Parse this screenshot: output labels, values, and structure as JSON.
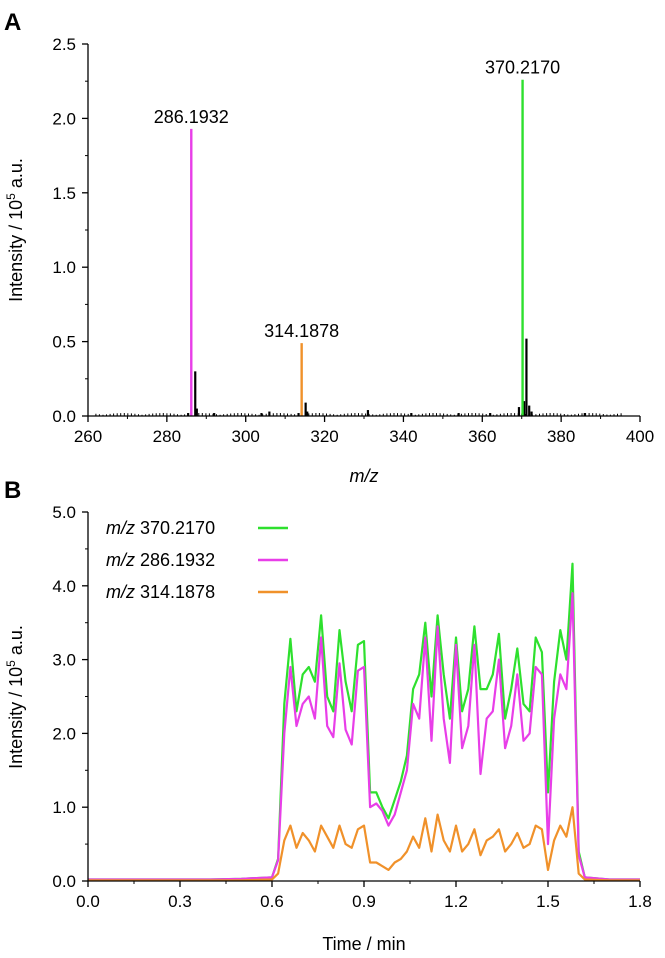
{
  "chart_data": [
    {
      "panel_label": "A",
      "type": "bar",
      "xlabel_italic": "m/z",
      "ylabel_prefix": "Intensity / 10",
      "ylabel_exp": "5",
      "ylabel_suffix": " a.u.",
      "xlim": [
        260,
        400
      ],
      "ylim": [
        0,
        2.5
      ],
      "xticks": [
        260,
        280,
        300,
        320,
        340,
        360,
        380,
        400
      ],
      "yticks": [
        0,
        0.5,
        1.0,
        1.5,
        2.0,
        2.5
      ],
      "ytick_labels": [
        "0.0",
        "0.5",
        "1.0",
        "1.5",
        "2.0",
        "2.5"
      ],
      "peaks": [
        {
          "mz": 286.1932,
          "intensity": 1.93,
          "color": "#e83ee8",
          "label": "286.1932"
        },
        {
          "mz": 314.1878,
          "intensity": 0.49,
          "color": "#f0912a",
          "label": "314.1878"
        },
        {
          "mz": 370.217,
          "intensity": 2.26,
          "color": "#2ee02e",
          "label": "370.2170"
        }
      ],
      "black_peaks": [
        {
          "mz": 287.2,
          "intensity": 0.3
        },
        {
          "mz": 287.6,
          "intensity": 0.05
        },
        {
          "mz": 285.4,
          "intensity": 0.02
        },
        {
          "mz": 315.2,
          "intensity": 0.09
        },
        {
          "mz": 315.6,
          "intensity": 0.03
        },
        {
          "mz": 313.4,
          "intensity": 0.02
        },
        {
          "mz": 369.3,
          "intensity": 0.06
        },
        {
          "mz": 370.6,
          "intensity": 0.1
        },
        {
          "mz": 371.2,
          "intensity": 0.52
        },
        {
          "mz": 371.9,
          "intensity": 0.07
        },
        {
          "mz": 372.5,
          "intensity": 0.03
        },
        {
          "mz": 331.0,
          "intensity": 0.04
        },
        {
          "mz": 342.0,
          "intensity": 0.02
        },
        {
          "mz": 354.0,
          "intensity": 0.02
        },
        {
          "mz": 306.0,
          "intensity": 0.03
        },
        {
          "mz": 304.0,
          "intensity": 0.02
        },
        {
          "mz": 292.0,
          "intensity": 0.02
        },
        {
          "mz": 386.0,
          "intensity": 0.02
        },
        {
          "mz": 362.0,
          "intensity": 0.02
        }
      ],
      "color": "#000000"
    },
    {
      "panel_label": "B",
      "type": "line",
      "xlabel": "Time / min",
      "ylabel_prefix": "Intensity / 10",
      "ylabel_exp": "5",
      "ylabel_suffix": " a.u.",
      "xlim": [
        0.0,
        1.8
      ],
      "ylim": [
        0,
        5.0
      ],
      "xticks": [
        0.0,
        0.3,
        0.6,
        0.9,
        1.2,
        1.5,
        1.8
      ],
      "xtick_labels": [
        "0.0",
        "0.3",
        "0.6",
        "0.9",
        "1.2",
        "1.5",
        "1.8"
      ],
      "yticks": [
        0,
        1,
        2,
        3,
        4,
        5
      ],
      "ytick_labels": [
        "0.0",
        "1.0",
        "2.0",
        "3.0",
        "4.0",
        "5.0"
      ],
      "legend_position": "top-left",
      "x": [
        0.0,
        0.1,
        0.2,
        0.3,
        0.4,
        0.5,
        0.6,
        0.62,
        0.64,
        0.66,
        0.68,
        0.7,
        0.72,
        0.74,
        0.76,
        0.78,
        0.8,
        0.82,
        0.84,
        0.86,
        0.88,
        0.9,
        0.92,
        0.94,
        0.96,
        0.98,
        1.0,
        1.02,
        1.04,
        1.06,
        1.08,
        1.1,
        1.12,
        1.14,
        1.16,
        1.18,
        1.2,
        1.22,
        1.24,
        1.26,
        1.28,
        1.3,
        1.32,
        1.34,
        1.36,
        1.38,
        1.4,
        1.42,
        1.44,
        1.46,
        1.48,
        1.5,
        1.52,
        1.54,
        1.56,
        1.58,
        1.6,
        1.62,
        1.7,
        1.8
      ],
      "series": [
        {
          "name_prefix": "m/z",
          "name_value": " 370.2170",
          "color": "#2ee02e",
          "values": [
            0.02,
            0.02,
            0.02,
            0.02,
            0.02,
            0.03,
            0.05,
            0.3,
            2.4,
            3.28,
            2.3,
            2.8,
            2.9,
            2.7,
            3.6,
            2.5,
            2.3,
            3.4,
            2.7,
            2.3,
            3.2,
            3.25,
            1.2,
            1.2,
            1.0,
            0.85,
            1.1,
            1.35,
            1.7,
            2.6,
            2.8,
            3.5,
            2.5,
            3.6,
            2.8,
            2.2,
            3.3,
            2.3,
            2.6,
            3.45,
            2.6,
            2.6,
            2.8,
            3.35,
            2.2,
            2.6,
            3.15,
            2.4,
            2.3,
            3.3,
            3.1,
            1.2,
            2.7,
            3.4,
            3.0,
            4.3,
            0.4,
            0.05,
            0.02,
            0.02
          ]
        },
        {
          "name_prefix": "m/z",
          "name_value": " 286.1932",
          "color": "#e83ee8",
          "values": [
            0.02,
            0.02,
            0.02,
            0.02,
            0.02,
            0.03,
            0.05,
            0.28,
            2.0,
            2.9,
            2.1,
            2.4,
            2.5,
            2.2,
            3.3,
            2.1,
            1.95,
            2.95,
            2.05,
            1.85,
            2.85,
            2.9,
            1.0,
            1.05,
            0.95,
            0.75,
            0.9,
            1.2,
            1.5,
            2.4,
            2.2,
            3.3,
            1.9,
            3.45,
            2.2,
            1.6,
            3.2,
            1.8,
            2.1,
            3.2,
            1.45,
            2.2,
            2.3,
            3.0,
            1.8,
            2.1,
            2.8,
            1.9,
            2.0,
            2.9,
            2.8,
            0.5,
            2.2,
            2.8,
            2.6,
            3.9,
            0.35,
            0.05,
            0.02,
            0.02
          ]
        },
        {
          "name_prefix": "m/z",
          "name_value": " 314.1878",
          "color": "#f0912a",
          "values": [
            0.01,
            0.01,
            0.01,
            0.01,
            0.01,
            0.01,
            0.02,
            0.1,
            0.55,
            0.75,
            0.45,
            0.65,
            0.55,
            0.4,
            0.75,
            0.6,
            0.45,
            0.75,
            0.5,
            0.45,
            0.7,
            0.75,
            0.25,
            0.25,
            0.2,
            0.15,
            0.25,
            0.3,
            0.4,
            0.6,
            0.45,
            0.85,
            0.4,
            0.9,
            0.55,
            0.4,
            0.75,
            0.4,
            0.5,
            0.7,
            0.35,
            0.55,
            0.6,
            0.7,
            0.4,
            0.5,
            0.65,
            0.45,
            0.5,
            0.75,
            0.7,
            0.15,
            0.55,
            0.75,
            0.6,
            1.0,
            0.1,
            0.02,
            0.01,
            0.01
          ]
        }
      ]
    }
  ]
}
